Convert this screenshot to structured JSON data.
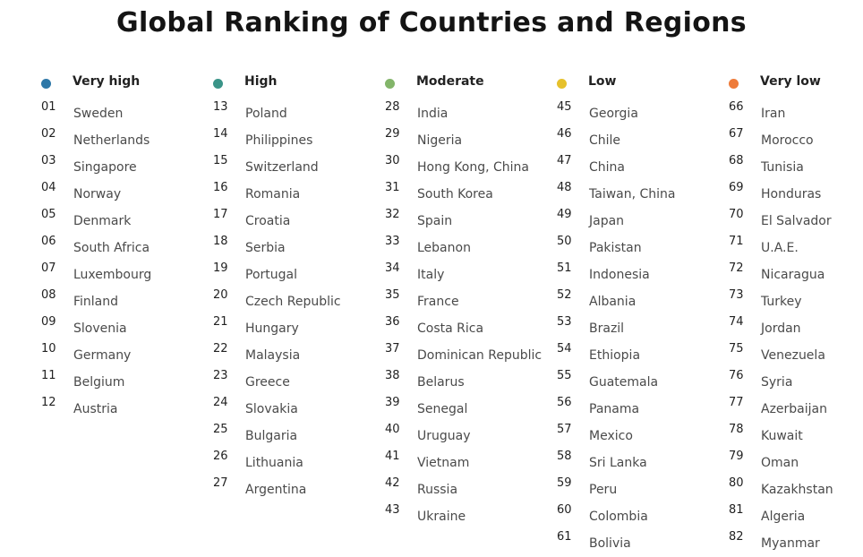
{
  "title": "Global Ranking of Countries and Regions",
  "colors": {
    "very_high": "#2e78a8",
    "high": "#3a9488",
    "moderate": "#83b56a",
    "low": "#e6c12c",
    "very_low": "#ee7b3a"
  },
  "columns": [
    {
      "label": "Very high",
      "color_key": "very_high",
      "items": [
        {
          "rank": "01",
          "name": "Sweden"
        },
        {
          "rank": "02",
          "name": "Netherlands"
        },
        {
          "rank": "03",
          "name": "Singapore"
        },
        {
          "rank": "04",
          "name": "Norway"
        },
        {
          "rank": "05",
          "name": "Denmark"
        },
        {
          "rank": "06",
          "name": "South Africa"
        },
        {
          "rank": "07",
          "name": "Luxembourg"
        },
        {
          "rank": "08",
          "name": "Finland"
        },
        {
          "rank": "09",
          "name": "Slovenia"
        },
        {
          "rank": "10",
          "name": "Germany"
        },
        {
          "rank": "11",
          "name": "Belgium"
        },
        {
          "rank": "12",
          "name": "Austria"
        }
      ]
    },
    {
      "label": "High",
      "color_key": "high",
      "items": [
        {
          "rank": "13",
          "name": "Poland"
        },
        {
          "rank": "14",
          "name": "Philippines"
        },
        {
          "rank": "15",
          "name": "Switzerland"
        },
        {
          "rank": "16",
          "name": "Romania"
        },
        {
          "rank": "17",
          "name": "Croatia"
        },
        {
          "rank": "18",
          "name": "Serbia"
        },
        {
          "rank": "19",
          "name": "Portugal"
        },
        {
          "rank": "20",
          "name": "Czech Republic"
        },
        {
          "rank": "21",
          "name": "Hungary"
        },
        {
          "rank": "22",
          "name": "Malaysia"
        },
        {
          "rank": "23",
          "name": "Greece"
        },
        {
          "rank": "24",
          "name": "Slovakia"
        },
        {
          "rank": "25",
          "name": "Bulgaria"
        },
        {
          "rank": "26",
          "name": "Lithuania"
        },
        {
          "rank": "27",
          "name": "Argentina"
        }
      ]
    },
    {
      "label": "Moderate",
      "color_key": "moderate",
      "items": [
        {
          "rank": "28",
          "name": "India"
        },
        {
          "rank": "29",
          "name": "Nigeria"
        },
        {
          "rank": "30",
          "name": "Hong Kong, China"
        },
        {
          "rank": "31",
          "name": "South Korea"
        },
        {
          "rank": "32",
          "name": "Spain"
        },
        {
          "rank": "33",
          "name": "Lebanon"
        },
        {
          "rank": "34",
          "name": "Italy"
        },
        {
          "rank": "35",
          "name": "France"
        },
        {
          "rank": "36",
          "name": "Costa Rica"
        },
        {
          "rank": "37",
          "name": "Dominican Republic"
        },
        {
          "rank": "38",
          "name": "Belarus"
        },
        {
          "rank": "39",
          "name": "Senegal"
        },
        {
          "rank": "40",
          "name": "Uruguay"
        },
        {
          "rank": "41",
          "name": "Vietnam"
        },
        {
          "rank": "42",
          "name": "Russia"
        },
        {
          "rank": "43",
          "name": "Ukraine"
        }
      ]
    },
    {
      "label": "Low",
      "color_key": "low",
      "items": [
        {
          "rank": "45",
          "name": "Georgia"
        },
        {
          "rank": "46",
          "name": "Chile"
        },
        {
          "rank": "47",
          "name": "China"
        },
        {
          "rank": "48",
          "name": "Taiwan, China"
        },
        {
          "rank": "49",
          "name": "Japan"
        },
        {
          "rank": "50",
          "name": "Pakistan"
        },
        {
          "rank": "51",
          "name": "Indonesia"
        },
        {
          "rank": "52",
          "name": "Albania"
        },
        {
          "rank": "53",
          "name": "Brazil"
        },
        {
          "rank": "54",
          "name": "Ethiopia"
        },
        {
          "rank": "55",
          "name": "Guatemala"
        },
        {
          "rank": "56",
          "name": "Panama"
        },
        {
          "rank": "57",
          "name": "Mexico"
        },
        {
          "rank": "58",
          "name": "Sri Lanka"
        },
        {
          "rank": "59",
          "name": "Peru"
        },
        {
          "rank": "60",
          "name": "Colombia"
        },
        {
          "rank": "61",
          "name": "Bolivia"
        }
      ]
    },
    {
      "label": "Very low",
      "color_key": "very_low",
      "items": [
        {
          "rank": "66",
          "name": "Iran"
        },
        {
          "rank": "67",
          "name": "Morocco"
        },
        {
          "rank": "68",
          "name": "Tunisia"
        },
        {
          "rank": "69",
          "name": "Honduras"
        },
        {
          "rank": "70",
          "name": "El Salvador"
        },
        {
          "rank": "71",
          "name": "U.A.E."
        },
        {
          "rank": "72",
          "name": "Nicaragua"
        },
        {
          "rank": "73",
          "name": "Turkey"
        },
        {
          "rank": "74",
          "name": "Jordan"
        },
        {
          "rank": "75",
          "name": "Venezuela"
        },
        {
          "rank": "76",
          "name": "Syria"
        },
        {
          "rank": "77",
          "name": "Azerbaijan"
        },
        {
          "rank": "78",
          "name": "Kuwait"
        },
        {
          "rank": "79",
          "name": "Oman"
        },
        {
          "rank": "80",
          "name": "Kazakhstan"
        },
        {
          "rank": "81",
          "name": "Algeria"
        },
        {
          "rank": "82",
          "name": "Myanmar"
        }
      ]
    }
  ]
}
